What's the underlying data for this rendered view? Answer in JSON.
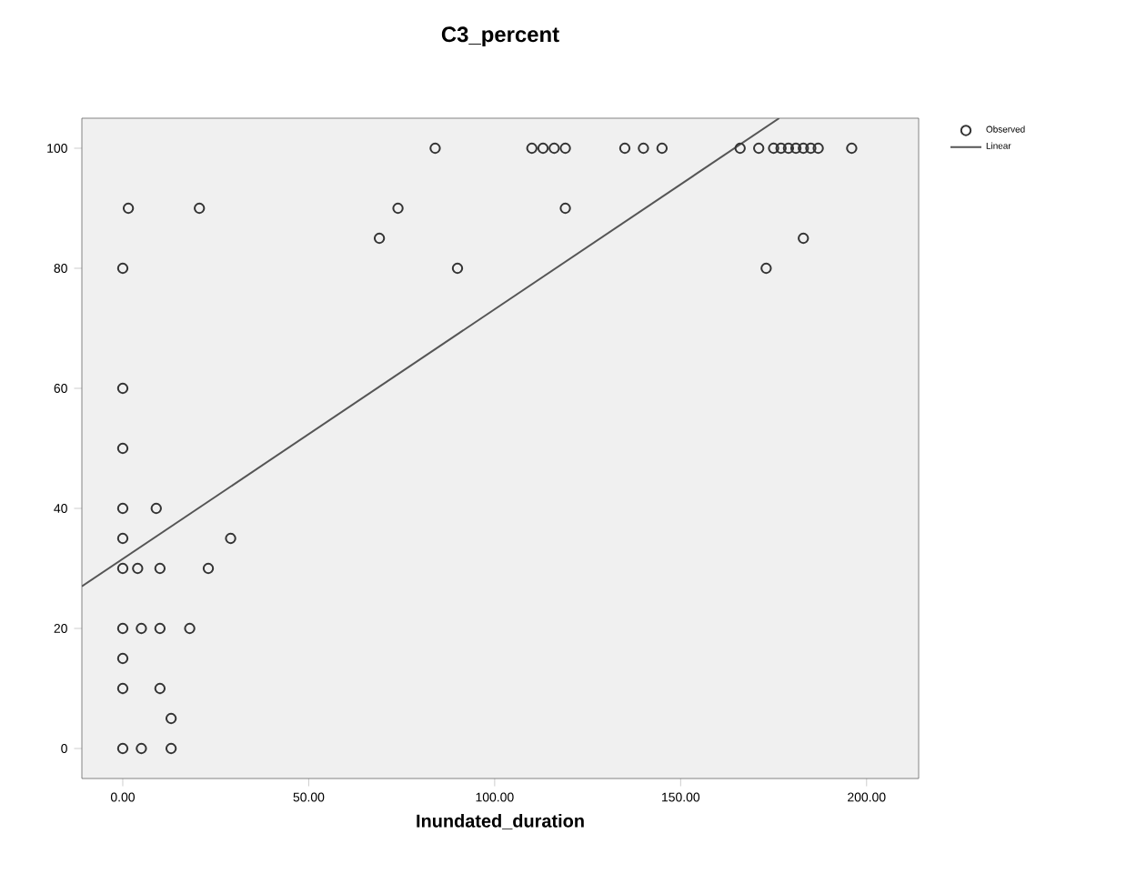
{
  "chart_data": {
    "type": "scatter",
    "title": "C3_percent",
    "xlabel": "Inundated_duration",
    "xlim": [
      -11,
      214
    ],
    "ylim": [
      -5,
      105
    ],
    "xticks": [
      {
        "value": 0,
        "label": "0.00"
      },
      {
        "value": 50,
        "label": "50.00"
      },
      {
        "value": 100,
        "label": "100.00"
      },
      {
        "value": 150,
        "label": "150.00"
      },
      {
        "value": 200,
        "label": "200.00"
      }
    ],
    "yticks": [
      0,
      20,
      40,
      60,
      80,
      100
    ],
    "grid": false,
    "legend": "top right",
    "marker": "circle",
    "series": [
      {
        "name": "Observed",
        "color": "#333333",
        "x": [
          1.5,
          20.6,
          0,
          0,
          0,
          0,
          9,
          0,
          29,
          0,
          4,
          10,
          23,
          0,
          5,
          10,
          18,
          0,
          0,
          10,
          13,
          0,
          5,
          13,
          69,
          74,
          84,
          90,
          110,
          113,
          116,
          119,
          119,
          135,
          140,
          145,
          166,
          171,
          175,
          177,
          179,
          181,
          183,
          185,
          187,
          196,
          173,
          183
        ],
        "values": [
          90,
          90,
          80,
          60,
          50,
          40,
          40,
          35,
          35,
          30,
          30,
          30,
          30,
          20,
          20,
          20,
          20,
          15,
          10,
          10,
          5,
          0,
          0,
          0,
          85,
          90,
          100,
          80,
          100,
          100,
          100,
          100,
          90,
          100,
          100,
          100,
          100,
          100,
          100,
          100,
          100,
          100,
          100,
          100,
          100,
          100,
          80,
          85
        ]
      },
      {
        "name": "Linear",
        "type": "line",
        "color": "#555555",
        "marker": "none",
        "x": [
          -11,
          176.5
        ],
        "values": [
          27,
          105
        ]
      }
    ]
  }
}
